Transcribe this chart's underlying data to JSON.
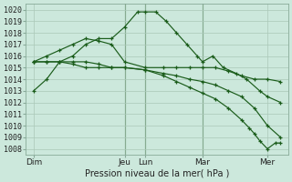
{
  "xlabel": "Pression niveau de la mer( hPa )",
  "ylim": [
    1007.5,
    1020.5
  ],
  "yticks": [
    1008,
    1009,
    1010,
    1011,
    1012,
    1013,
    1014,
    1015,
    1016,
    1017,
    1018,
    1019,
    1020
  ],
  "background_color": "#cce8dc",
  "grid_color": "#aac8b8",
  "line_color": "#1a5c1a",
  "vline_color": "#3a6a3a",
  "day_labels": [
    "Dim",
    "Jeu",
    "Lun",
    "Mar",
    "Mer"
  ],
  "day_positions": [
    0.0,
    3.5,
    4.3,
    6.5,
    9.0
  ],
  "vline_positions": [
    3.5,
    4.3,
    6.5
  ],
  "xlim": [
    -0.3,
    9.8
  ],
  "series1_x": [
    0,
    0.5,
    1.0,
    1.5,
    2.0,
    2.5,
    3.0,
    3.5,
    4.0,
    4.3,
    4.7,
    5.1,
    5.5,
    5.9,
    6.3,
    6.5,
    6.9,
    7.3,
    7.8,
    8.2,
    8.7,
    9.0,
    9.5
  ],
  "series1_y": [
    1013,
    1014,
    1015.5,
    1016,
    1017,
    1017.5,
    1017.5,
    1018.5,
    1019.8,
    1019.8,
    1019.8,
    1019,
    1018,
    1017,
    1016,
    1015.5,
    1016,
    1015,
    1014.5,
    1014,
    1013,
    1012.5,
    1012
  ],
  "series2_x": [
    0,
    0.5,
    1.0,
    1.5,
    2.0,
    2.5,
    3.0,
    3.5,
    4.3,
    5.0,
    5.5,
    6.0,
    6.5,
    7.0,
    7.5,
    8.0,
    8.5,
    9.0,
    9.5
  ],
  "series2_y": [
    1015.5,
    1016,
    1016.5,
    1017,
    1017.5,
    1017.3,
    1017,
    1015.5,
    1015,
    1015,
    1015,
    1015,
    1015,
    1015,
    1014.7,
    1014.3,
    1014,
    1014,
    1013.8
  ],
  "series3_x": [
    0,
    0.5,
    1.0,
    1.5,
    2.0,
    2.5,
    3.0,
    3.5,
    4.3,
    5.0,
    5.5,
    6.0,
    6.5,
    7.0,
    7.5,
    8.0,
    8.5,
    9.0,
    9.5
  ],
  "series3_y": [
    1015.5,
    1015.5,
    1015.5,
    1015.5,
    1015.5,
    1015.3,
    1015,
    1015,
    1014.8,
    1014.5,
    1014.3,
    1014,
    1013.8,
    1013.5,
    1013,
    1012.5,
    1011.5,
    1010,
    1009
  ],
  "series4_x": [
    0,
    0.5,
    1.0,
    1.5,
    2.0,
    2.5,
    3.0,
    3.5,
    4.3,
    5.0,
    5.5,
    6.0,
    6.5,
    7.0,
    7.5,
    8.0,
    8.3,
    8.5,
    8.7,
    9.0,
    9.3,
    9.5
  ],
  "series4_y": [
    1015.5,
    1015.5,
    1015.5,
    1015.3,
    1015,
    1015,
    1015,
    1015,
    1014.8,
    1014.3,
    1013.8,
    1013.3,
    1012.8,
    1012.3,
    1011.5,
    1010.5,
    1009.8,
    1009.3,
    1008.7,
    1008,
    1008.5,
    1008.5
  ]
}
